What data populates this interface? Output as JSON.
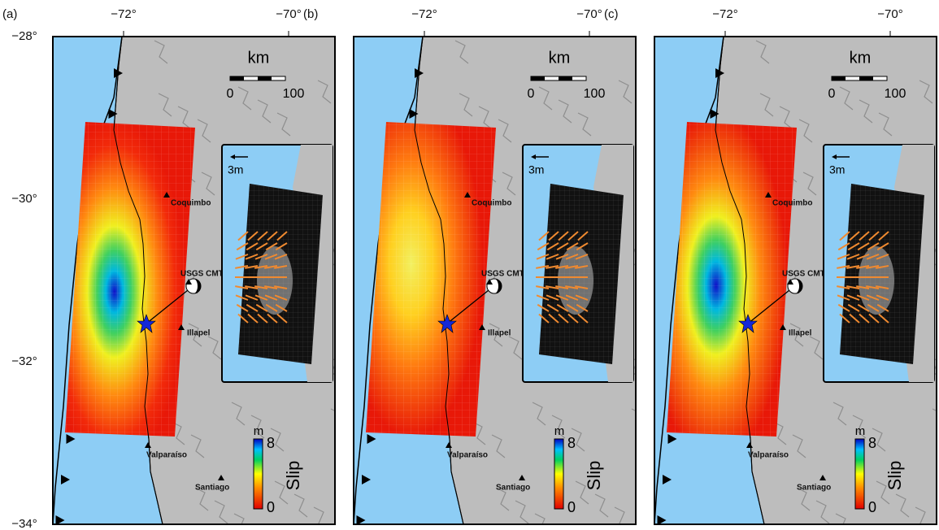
{
  "panels": [
    {
      "label": "(a)",
      "lon_ticks": [
        "−72°",
        "−70°"
      ],
      "lat_ticks": [
        "−28°",
        "−30°",
        "−32°",
        "−34°"
      ],
      "scale": {
        "unit": "km",
        "ticks": [
          0,
          100
        ]
      },
      "inset": {
        "arrow_label": "3m"
      },
      "places": [
        "Coquimbo",
        "USGS CMT",
        "Illapel",
        "Valparaíso",
        "Santiago"
      ],
      "colorbar": {
        "unit": "m",
        "max": 8,
        "min": 0,
        "title": "Slip"
      }
    },
    {
      "label": "(b)",
      "lon_ticks": [
        "−72°",
        "−70°"
      ],
      "scale": {
        "unit": "km",
        "ticks": [
          0,
          100
        ]
      },
      "inset": {
        "arrow_label": "3m"
      },
      "places": [
        "Coquimbo",
        "USGS CMT",
        "Illapel",
        "Valparaíso",
        "Santiago"
      ],
      "colorbar": {
        "unit": "m",
        "max": 8,
        "min": 0,
        "title": "Slip"
      }
    },
    {
      "label": "(c)",
      "lon_ticks": [
        "−72°",
        "−70°"
      ],
      "scale": {
        "unit": "km",
        "ticks": [
          0,
          100
        ]
      },
      "inset": {
        "arrow_label": "3m"
      },
      "places": [
        "Coquimbo",
        "USGS CMT",
        "Illapel",
        "Valparaíso",
        "Santiago"
      ],
      "colorbar": {
        "unit": "m",
        "max": 8,
        "min": 0,
        "title": "Slip"
      }
    }
  ]
}
